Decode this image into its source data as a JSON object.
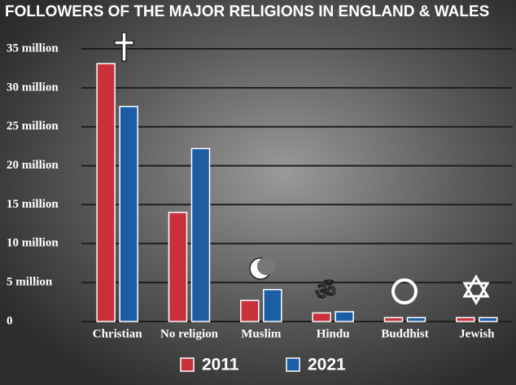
{
  "chart_data": {
    "type": "bar",
    "title": "FOLLOWERS OF THE MAJOR RELIGIONS IN ENGLAND & WALES",
    "categories": [
      "Christian",
      "No religion",
      "Muslim",
      "Hindu",
      "Buddhist",
      "Jewish"
    ],
    "series": [
      {
        "name": "2011",
        "color": "#c8303a",
        "values": [
          33.1,
          14.0,
          2.7,
          1.1,
          0.5,
          0.5
        ]
      },
      {
        "name": "2021",
        "color": "#1b5ea6",
        "values": [
          27.6,
          22.2,
          4.1,
          1.25,
          0.5,
          0.5
        ]
      }
    ],
    "ylim": [
      0,
      35
    ],
    "yticks": [
      0,
      {
        "value": 5,
        "label": "5 million"
      },
      {
        "value": 10,
        "label": "10 million"
      },
      {
        "value": 15,
        "label": "15 million"
      },
      {
        "value": 20,
        "label": "20 million"
      },
      {
        "value": 25,
        "label": "25 million"
      },
      {
        "value": 30,
        "label": "30 million"
      },
      {
        "value": 35,
        "label": "35 million"
      }
    ],
    "grid": true
  }
}
